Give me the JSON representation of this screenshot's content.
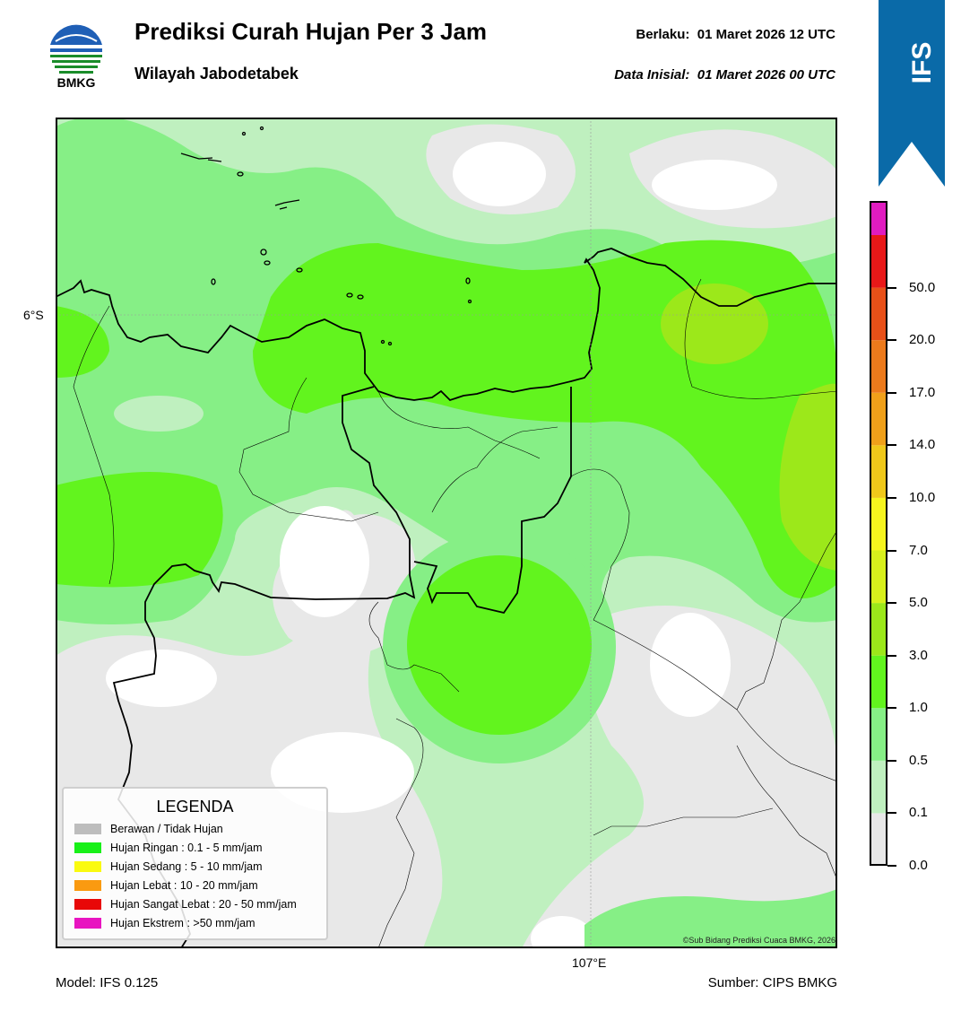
{
  "header": {
    "title": "Prediksi Curah Hujan Per 3 Jam",
    "subtitle": "Wilayah Jabodetabek",
    "valid_label": "Berlaku:",
    "valid_time": "01 Maret 2026 12 UTC",
    "init_label": "Data Inisial:",
    "init_time": "01 Maret 2026 00 UTC"
  },
  "logo": {
    "text": "BMKG",
    "icon": "bmkg-logo"
  },
  "ribbon": {
    "text": "IFS",
    "color": "#0a6aa8"
  },
  "map": {
    "lat_label": "6°S",
    "lon_label": "107°E",
    "credit": "©Sub Bidang Prediksi Cuaca BMKG, 2026"
  },
  "legend": {
    "title": "LEGENDA",
    "items": [
      {
        "label": "Berawan / Tidak Hujan",
        "color": "#bdbdbd"
      },
      {
        "label": "Hujan Ringan : 0.1 - 5 mm/jam",
        "color": "#18f018"
      },
      {
        "label": "Hujan Sedang : 5 - 10 mm/jam",
        "color": "#fafa10"
      },
      {
        "label": "Hujan Lebat : 10 - 20 mm/jam",
        "color": "#fa9a10"
      },
      {
        "label": "Hujan Sangat Lebat : 20 - 50 mm/jam",
        "color": "#e80808"
      },
      {
        "label": "Hujan Ekstrem : >50 mm/jam",
        "color": "#e814c0"
      }
    ]
  },
  "colorbar": {
    "ticks": [
      "0.0",
      "0.1",
      "0.5",
      "1.0",
      "3.0",
      "5.0",
      "7.0",
      "10.0",
      "14.0",
      "17.0",
      "20.0",
      "50.0"
    ],
    "colors": [
      "#e8e8e8",
      "#bff0bf",
      "#86ef86",
      "#62f41e",
      "#9ce81a",
      "#d8f01c",
      "#f6f41e",
      "#f0c81a",
      "#f0a01a",
      "#ec7a1c",
      "#e85018",
      "#e81818",
      "#e01cc0"
    ]
  },
  "footer": {
    "model": "Model: IFS 0.125",
    "source": "Sumber: CIPS BMKG"
  }
}
